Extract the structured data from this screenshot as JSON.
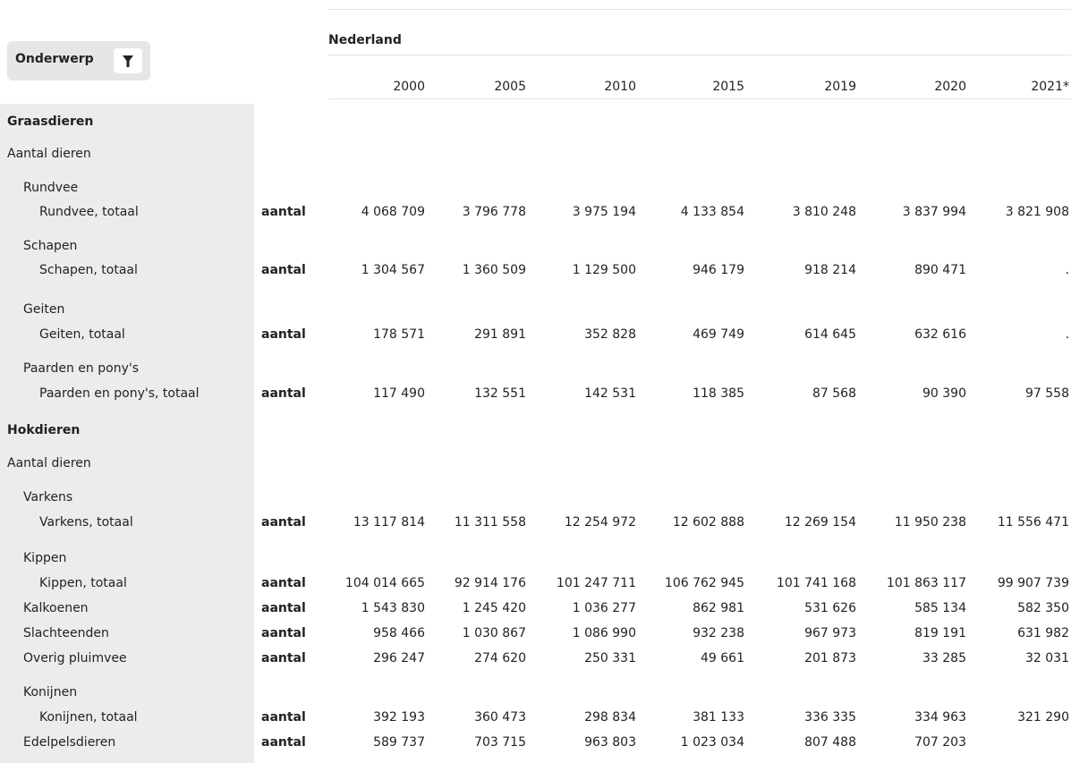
{
  "header": {
    "filter_label": "Onderwerp",
    "region": "Nederland",
    "columns": [
      "2000",
      "2005",
      "2010",
      "2015",
      "2019",
      "2020",
      "2021*"
    ]
  },
  "table": {
    "rows": [
      {
        "label": "Graasdieren",
        "level": 0
      },
      {
        "label": "Aantal dieren",
        "level": 1
      },
      {
        "label": "Rundvee",
        "level": 2
      },
      {
        "label": "Rundvee, totaal",
        "level": 3,
        "unit": "aantal",
        "values": [
          "4 068 709",
          "3 796 778",
          "3 975 194",
          "4 133 854",
          "3 810 248",
          "3 837 994",
          "3 821 908"
        ]
      },
      {
        "label": "Schapen",
        "level": 2
      },
      {
        "label": "Schapen, totaal",
        "level": 3,
        "unit": "aantal",
        "values": [
          "1 304 567",
          "1 360 509",
          "1 129 500",
          "946 179",
          "918 214",
          "890 471",
          "."
        ]
      },
      {
        "label": "Geiten",
        "level": 2
      },
      {
        "label": "Geiten, totaal",
        "level": 3,
        "unit": "aantal",
        "values": [
          "178 571",
          "291 891",
          "352 828",
          "469 749",
          "614 645",
          "632 616",
          "."
        ]
      },
      {
        "label": "Paarden en pony's",
        "level": 2
      },
      {
        "label": "Paarden en pony's, totaal",
        "level": 3,
        "unit": "aantal",
        "values": [
          "117 490",
          "132 551",
          "142 531",
          "118 385",
          "87 568",
          "90 390",
          "97 558"
        ]
      },
      {
        "label": "Hokdieren",
        "level": 0
      },
      {
        "label": "Aantal dieren",
        "level": 1
      },
      {
        "label": "Varkens",
        "level": 2
      },
      {
        "label": "Varkens, totaal",
        "level": 3,
        "unit": "aantal",
        "values": [
          "13 117 814",
          "11 311 558",
          "12 254 972",
          "12 602 888",
          "12 269 154",
          "11 950 238",
          "11 556 471"
        ]
      },
      {
        "label": "Kippen",
        "level": 2
      },
      {
        "label": "Kippen, totaal",
        "level": 3,
        "unit": "aantal",
        "values": [
          "104 014 665",
          "92 914 176",
          "101 247 711",
          "106 762 945",
          "101 741 168",
          "101 863 117",
          "99 907 739"
        ]
      },
      {
        "label": "Kalkoenen",
        "level": 2,
        "unit": "aantal",
        "values": [
          "1 543 830",
          "1 245 420",
          "1 036 277",
          "862 981",
          "531 626",
          "585 134",
          "582 350"
        ]
      },
      {
        "label": "Slachteenden",
        "level": 2,
        "unit": "aantal",
        "values": [
          "958 466",
          "1 030 867",
          "1 086 990",
          "932 238",
          "967 973",
          "819 191",
          "631 982"
        ]
      },
      {
        "label": "Overig pluimvee",
        "level": 2,
        "unit": "aantal",
        "values": [
          "296 247",
          "274 620",
          "250 331",
          "49 661",
          "201 873",
          "33 285",
          "32 031"
        ]
      },
      {
        "label": "Konijnen",
        "level": 2
      },
      {
        "label": "Konijnen, totaal",
        "level": 3,
        "unit": "aantal",
        "values": [
          "392 193",
          "360 473",
          "298 834",
          "381 133",
          "336 335",
          "334 963",
          "321 290"
        ]
      },
      {
        "label": "Edelpelsdieren",
        "level": 2,
        "unit": "aantal",
        "values": [
          "589 737",
          "703 715",
          "963 803",
          "1 023 034",
          "807 488",
          "707 203",
          null
        ]
      }
    ]
  }
}
